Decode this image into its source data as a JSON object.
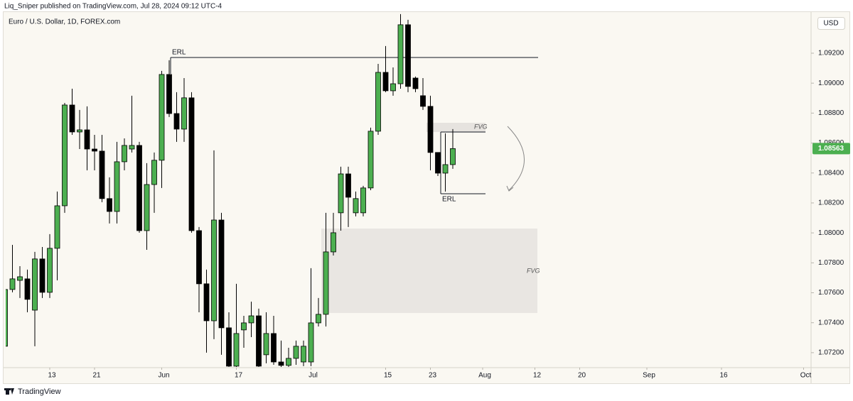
{
  "header": {
    "publisher": "Liq_Sniper published on TradingView.com, Jul 28, 2024 09:12 UTC-4"
  },
  "chart_data": {
    "type": "candlestick",
    "title": "Euro / U.S. Dollar, 1D, FOREX.com",
    "currency": "USD",
    "up_color": "#4caf50",
    "down_color": "#000000",
    "open": [
      1.07243,
      1.07622,
      1.07683,
      1.07693,
      1.07484,
      1.07826,
      1.07603,
      1.07897,
      1.08181,
      1.08854,
      1.08674,
      1.08688,
      1.0856,
      1.08546,
      1.08229,
      1.08143,
      1.08475,
      1.0856,
      1.08584,
      1.08015,
      1.08323,
      1.08485,
      1.09058,
      1.08797,
      1.08693,
      1.08902,
      1.08015,
      1.0766,
      1.07413,
      1.08086,
      1.07366,
      1.0711,
      1.07352,
      1.07399,
      1.07446,
      1.07186,
      1.07328,
      1.07138,
      1.07115,
      1.07162,
      1.07138,
      1.07138,
      1.07399,
      1.07456,
      1.07873,
      1.08134,
      1.08394,
      1.08134,
      1.08134,
      1.083,
      1.08679,
      1.09072,
      1.08949,
      1.08996,
      1.0939,
      1.09034,
      1.08916,
      1.08845,
      1.08537,
      1.08399,
      1.08456
    ],
    "high": [
      1.0766,
      1.0792,
      1.07778,
      1.07755,
      1.07873,
      1.07906,
      1.07992,
      1.08276,
      1.08868,
      1.08963,
      1.08821,
      1.08845,
      1.08655,
      1.08655,
      1.08371,
      1.08608,
      1.08631,
      1.08916,
      1.08608,
      1.08466,
      1.08537,
      1.09082,
      1.09153,
      1.0894,
      1.09034,
      1.0894,
      1.08039,
      1.07755,
      1.08551,
      1.08134,
      1.0747,
      1.0766,
      1.07446,
      1.07541,
      1.07494,
      1.0747,
      1.07446,
      1.07281,
      1.07233,
      1.07281,
      1.07281,
      1.07764,
      1.07565,
      1.08134,
      1.08134,
      1.08442,
      1.08442,
      1.08276,
      1.08314,
      1.08703,
      1.09129,
      1.09248,
      1.09105,
      1.09461,
      1.09423,
      1.09044,
      1.09034,
      1.08916,
      1.08537,
      1.08665,
      1.08693
    ],
    "low": [
      1.07224,
      1.07603,
      1.07565,
      1.0747,
      1.07243,
      1.07565,
      1.07565,
      1.07683,
      1.08134,
      1.08655,
      1.0856,
      1.08418,
      1.08418,
      1.08205,
      1.08063,
      1.08063,
      1.08418,
      1.08537,
      1.08001,
      1.07887,
      1.08134,
      1.083,
      1.08774,
      1.08608,
      1.08608,
      1.08001,
      1.0747,
      1.072,
      1.0729,
      1.07186,
      1.07105,
      1.07105,
      1.07233,
      1.07304,
      1.07105,
      1.07129,
      1.07119,
      1.07105,
      1.07105,
      1.07119,
      1.0711,
      1.0711,
      1.07375,
      1.07375,
      1.07849,
      1.08015,
      1.08039,
      1.0811,
      1.0811,
      1.08285,
      1.08655,
      1.0894,
      1.08916,
      1.08963,
      1.0894,
      1.0894,
      1.08821,
      1.08418,
      1.0838,
      1.08276,
      1.08428
    ],
    "close": [
      1.07622,
      1.07693,
      1.07707,
      1.07556,
      1.07826,
      1.07603,
      1.07897,
      1.08181,
      1.08854,
      1.08674,
      1.08688,
      1.0856,
      1.08546,
      1.08229,
      1.08143,
      1.08475,
      1.08584,
      1.08584,
      1.08015,
      1.08323,
      1.08485,
      1.09058,
      1.08797,
      1.08693,
      1.08902,
      1.08015,
      1.0766,
      1.07413,
      1.08086,
      1.07366,
      1.0711,
      1.07328,
      1.07399,
      1.07446,
      1.0711,
      1.07328,
      1.07138,
      1.07115,
      1.07162,
      1.07243,
      1.07243,
      1.07399,
      1.07456,
      1.07873,
      1.08001,
      1.08394,
      1.08238,
      1.08229,
      1.083,
      1.08679,
      1.09072,
      1.08949,
      1.08996,
      1.0939,
      1.08978,
      1.08963,
      1.08845,
      1.08537,
      1.08399,
      1.08456,
      1.08563
    ],
    "ylim": [
      1.071,
      1.0947
    ],
    "yticks": [
      {
        "value": 1.072,
        "label": "1.07200"
      },
      {
        "value": 1.074,
        "label": "1.07400"
      },
      {
        "value": 1.076,
        "label": "1.07600"
      },
      {
        "value": 1.078,
        "label": "1.07800"
      },
      {
        "value": 1.08,
        "label": "1.08000"
      },
      {
        "value": 1.082,
        "label": "1.08200"
      },
      {
        "value": 1.084,
        "label": "1.08400"
      },
      {
        "value": 1.086,
        "label": "1.08600"
      },
      {
        "value": 1.088,
        "label": "1.08800"
      },
      {
        "value": 1.09,
        "label": "1.09000"
      },
      {
        "value": 1.092,
        "label": "1.09200"
      }
    ],
    "xlim": [
      0,
      108
    ],
    "xticks": [
      {
        "value": 6,
        "label": "13"
      },
      {
        "value": 12,
        "label": "21"
      },
      {
        "value": 21,
        "label": "Jun"
      },
      {
        "value": 31,
        "label": "17"
      },
      {
        "value": 41,
        "label": "Jul"
      },
      {
        "value": 51,
        "label": "15"
      },
      {
        "value": 57,
        "label": "23"
      },
      {
        "value": 64,
        "label": "Aug"
      },
      {
        "value": 71,
        "label": "12"
      },
      {
        "value": 77,
        "label": "20"
      },
      {
        "value": 86,
        "label": "Sep"
      },
      {
        "value": 96,
        "label": "16"
      },
      {
        "value": 107,
        "label": "Oct"
      }
    ],
    "grid": false,
    "annotations": [
      "ERL",
      "ERL",
      "FVG",
      "FVG"
    ]
  },
  "footer": {
    "brand": "TradingView"
  }
}
